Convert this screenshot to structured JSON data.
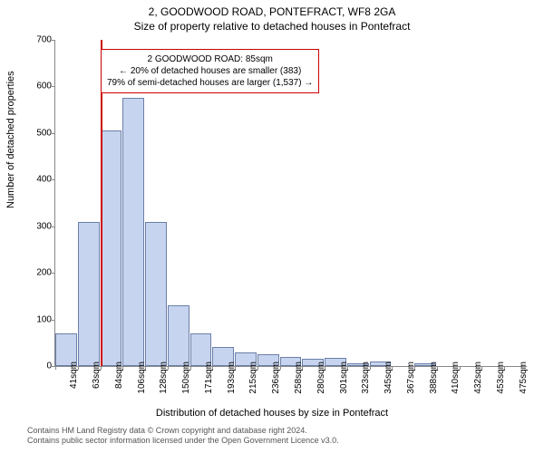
{
  "title_line1": "2, GOODWOOD ROAD, PONTEFRACT, WF8 2GA",
  "title_line2": "Size of property relative to detached houses in Pontefract",
  "ylabel": "Number of detached properties",
  "xlabel": "Distribution of detached houses by size in Pontefract",
  "footer_line1": "Contains HM Land Registry data © Crown copyright and database right 2024.",
  "footer_line2": "Contains public sector information licensed under the Open Government Licence v3.0.",
  "chart": {
    "type": "histogram",
    "ylim": [
      0,
      700
    ],
    "ytick_step": 100,
    "x_start": 41,
    "x_step": 21.7,
    "x_count": 21,
    "x_unit": "sqm",
    "bar_values": [
      70,
      310,
      505,
      575,
      310,
      130,
      70,
      40,
      30,
      25,
      20,
      15,
      18,
      5,
      10,
      0,
      5,
      0,
      0,
      0,
      0
    ],
    "bar_color": "#c7d4ef",
    "bar_border": "#6b7fa8",
    "marker_x": 85,
    "marker_color": "#cc0000",
    "background_color": "#ffffff",
    "axis_color": "#888888",
    "tick_fontsize": 10,
    "label_fontsize": 11,
    "title_fontsize": 12
  },
  "annotation": {
    "line1": "2 GOODWOOD ROAD: 85sqm",
    "line2": "← 20% of detached houses are smaller (383)",
    "line3": "79% of semi-detached houses are larger (1,537) →",
    "border_color": "#cc0000"
  },
  "xtick_labels": [
    "41sqm",
    "63sqm",
    "84sqm",
    "106sqm",
    "128sqm",
    "150sqm",
    "171sqm",
    "193sqm",
    "215sqm",
    "236sqm",
    "258sqm",
    "280sqm",
    "301sqm",
    "323sqm",
    "345sqm",
    "367sqm",
    "388sqm",
    "410sqm",
    "432sqm",
    "453sqm",
    "475sqm"
  ]
}
